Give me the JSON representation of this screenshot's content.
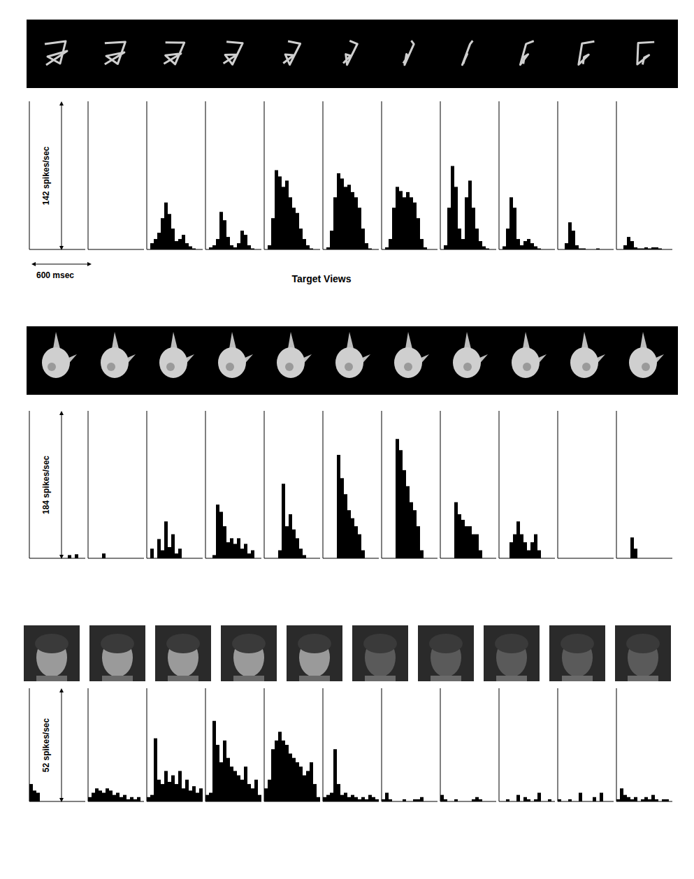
{
  "chart_data": [
    {
      "type": "bar",
      "y_label": "142 spikes/sec",
      "x_label": "Target Views",
      "annotations": [
        "600 msec"
      ],
      "ylim": [
        0,
        142
      ],
      "yticks": [
        0,
        142
      ],
      "tick_labels": false,
      "color": "#000000",
      "panels": [
        [
          0,
          0,
          0,
          0,
          0,
          0,
          0,
          0,
          0,
          0,
          0,
          0,
          0,
          0,
          0,
          0
        ],
        [
          0,
          0,
          0,
          0,
          0,
          0,
          0,
          0,
          0,
          0,
          0,
          0,
          0,
          0,
          0,
          0
        ],
        [
          0,
          6,
          10,
          16,
          30,
          45,
          34,
          20,
          8,
          10,
          14,
          6,
          3,
          1,
          0,
          0
        ],
        [
          0,
          2,
          4,
          10,
          36,
          28,
          12,
          4,
          2,
          6,
          18,
          14,
          4,
          1,
          0,
          0
        ],
        [
          0,
          4,
          30,
          76,
          70,
          60,
          66,
          50,
          40,
          35,
          20,
          10,
          4,
          1,
          0,
          0
        ],
        [
          0,
          2,
          18,
          50,
          73,
          68,
          60,
          62,
          55,
          50,
          40,
          20,
          6,
          1,
          0,
          0
        ],
        [
          0,
          2,
          10,
          40,
          60,
          56,
          50,
          55,
          50,
          45,
          30,
          10,
          2,
          0,
          0,
          0
        ],
        [
          0,
          4,
          40,
          80,
          60,
          20,
          10,
          50,
          66,
          40,
          20,
          8,
          3,
          1,
          0,
          0
        ],
        [
          0,
          3,
          20,
          50,
          40,
          10,
          4,
          8,
          10,
          6,
          3,
          1,
          0,
          0,
          0,
          0
        ],
        [
          0,
          0,
          6,
          26,
          18,
          4,
          1,
          1,
          0,
          0,
          0,
          1,
          0,
          0,
          0,
          0
        ],
        [
          0,
          0,
          4,
          12,
          8,
          2,
          1,
          1,
          2,
          1,
          2,
          2,
          1,
          0,
          0,
          0
        ]
      ]
    },
    {
      "type": "bar",
      "y_label": "184 spikes/sec",
      "ylim": [
        0,
        184
      ],
      "yticks": [
        0,
        184
      ],
      "tick_labels": false,
      "color": "#000000",
      "panels": [
        [
          0,
          0,
          0,
          0,
          0,
          0,
          0,
          0,
          0,
          0,
          0,
          4,
          0,
          5,
          0,
          0
        ],
        [
          0,
          0,
          0,
          0,
          6,
          0,
          0,
          0,
          0,
          0,
          0,
          0,
          0,
          0,
          0,
          0
        ],
        [
          0,
          12,
          0,
          24,
          10,
          46,
          14,
          30,
          6,
          12,
          0,
          0,
          0,
          0,
          0,
          0
        ],
        [
          0,
          0,
          4,
          67,
          58,
          40,
          20,
          25,
          18,
          25,
          12,
          18,
          6,
          10,
          0,
          0
        ],
        [
          0,
          0,
          0,
          0,
          10,
          93,
          40,
          55,
          36,
          25,
          12,
          4,
          0,
          0,
          0,
          0
        ],
        [
          0,
          0,
          0,
          0,
          129,
          100,
          80,
          60,
          50,
          40,
          30,
          10,
          0,
          0,
          0,
          0
        ],
        [
          0,
          0,
          0,
          0,
          149,
          135,
          110,
          90,
          70,
          60,
          40,
          10,
          0,
          0,
          0,
          0
        ],
        [
          0,
          0,
          0,
          0,
          70,
          55,
          48,
          40,
          40,
          30,
          30,
          10,
          0,
          0,
          0,
          0
        ],
        [
          0,
          0,
          0,
          20,
          30,
          46,
          30,
          20,
          10,
          20,
          30,
          10,
          0,
          0,
          0,
          0
        ],
        [
          0,
          0,
          0,
          0,
          0,
          0,
          0,
          0,
          0,
          0,
          0,
          0,
          0,
          0,
          0,
          0
        ],
        [
          0,
          0,
          0,
          0,
          26,
          12,
          0,
          0,
          0,
          0,
          0,
          0,
          0,
          0,
          0,
          0
        ]
      ]
    },
    {
      "type": "bar",
      "y_label": "52 spikes/sec",
      "ylim": [
        0,
        52
      ],
      "yticks": [
        0,
        52
      ],
      "tick_labels": false,
      "color": "#000000",
      "panels": [
        [
          8,
          5,
          4,
          0,
          0,
          0,
          0,
          0,
          0,
          0,
          0,
          0,
          0,
          0,
          0,
          0
        ],
        [
          2,
          4,
          6,
          5,
          4,
          6,
          5,
          3,
          4,
          2,
          3,
          1,
          2,
          1,
          2,
          0
        ],
        [
          2,
          3,
          29,
          10,
          8,
          14,
          9,
          12,
          8,
          14,
          6,
          10,
          5,
          7,
          4,
          6
        ],
        [
          3,
          4,
          37,
          26,
          18,
          28,
          20,
          16,
          14,
          12,
          10,
          16,
          8,
          6,
          10,
          3
        ],
        [
          6,
          10,
          24,
          28,
          32,
          28,
          26,
          22,
          20,
          18,
          16,
          12,
          14,
          18,
          8,
          2
        ],
        [
          2,
          3,
          4,
          24,
          8,
          3,
          4,
          2,
          3,
          2,
          1,
          2,
          1,
          3,
          2,
          1
        ],
        [
          1,
          4,
          1,
          0,
          0,
          0,
          1,
          0,
          0,
          1,
          1,
          2,
          0,
          0,
          0,
          0
        ],
        [
          3,
          1,
          0,
          0,
          1,
          0,
          0,
          0,
          0,
          1,
          2,
          1,
          0,
          0,
          0,
          0
        ],
        [
          0,
          0,
          1,
          0,
          0,
          3,
          0,
          2,
          1,
          0,
          1,
          4,
          0,
          0,
          1,
          0
        ],
        [
          1,
          0,
          0,
          1,
          0,
          0,
          4,
          0,
          0,
          0,
          2,
          0,
          4,
          0,
          0,
          0
        ],
        [
          1,
          6,
          3,
          2,
          1,
          2,
          0,
          1,
          2,
          1,
          3,
          1,
          0,
          1,
          1,
          0
        ]
      ]
    }
  ]
}
